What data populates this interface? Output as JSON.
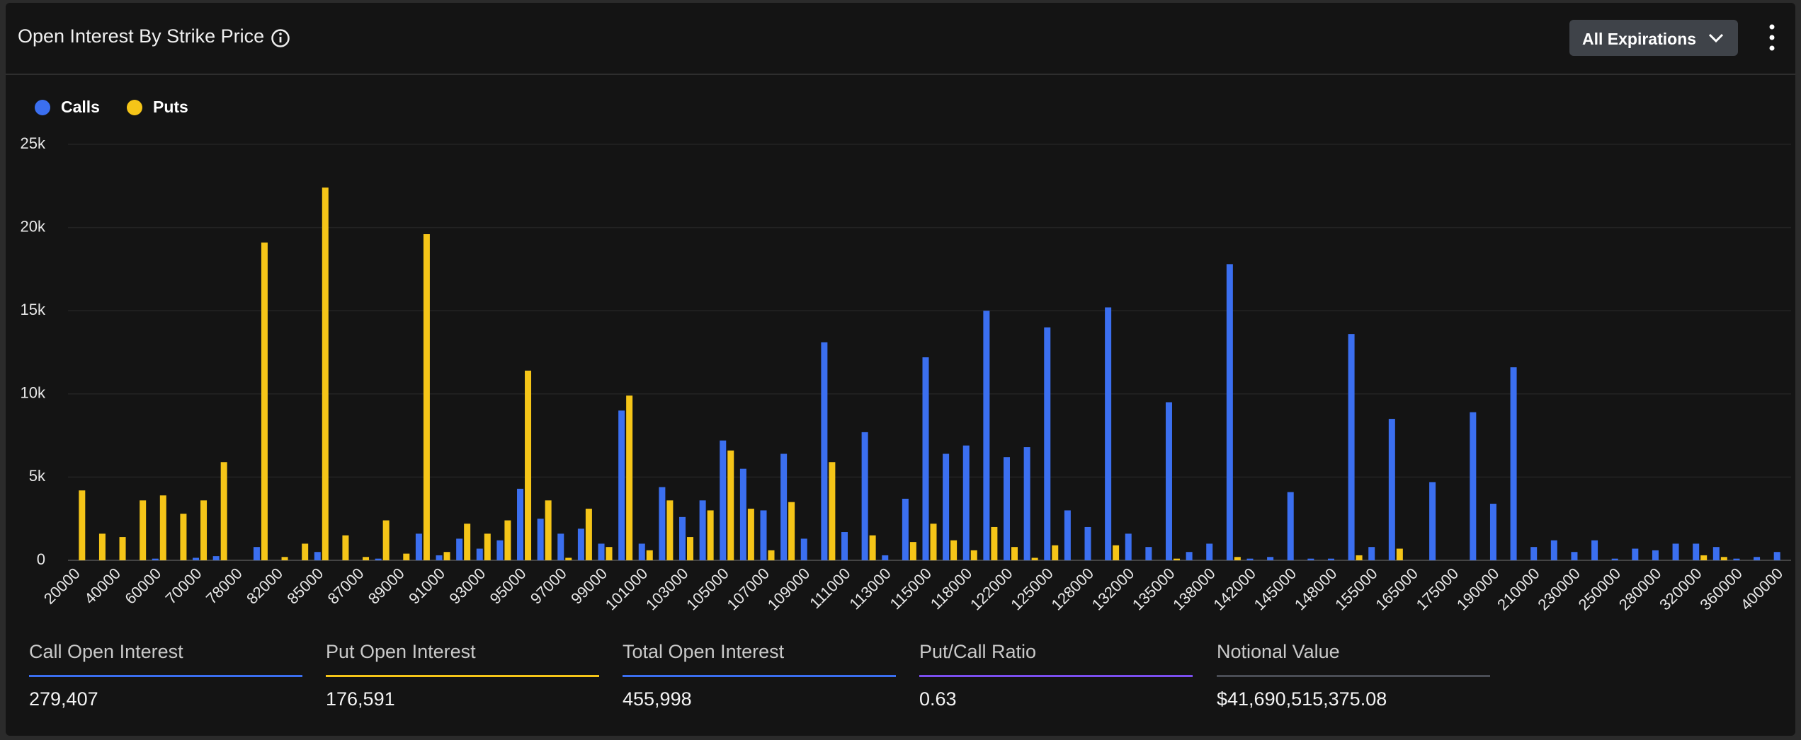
{
  "header": {
    "title": "Open Interest By Strike Price",
    "dropdown": "All Expirations"
  },
  "chart_data": {
    "type": "bar",
    "categories": [
      "20000",
      null,
      "40000",
      null,
      "60000",
      null,
      "70000",
      null,
      "78000",
      null,
      "82000",
      null,
      "85000",
      null,
      "87000",
      null,
      "89000",
      null,
      "91000",
      null,
      "93000",
      null,
      "95000",
      null,
      "97000",
      null,
      "99000",
      null,
      "101000",
      null,
      "103000",
      null,
      "105000",
      null,
      "107000",
      null,
      "109000",
      null,
      "111000",
      null,
      "113000",
      null,
      "115000",
      null,
      "118000",
      null,
      "122000",
      null,
      "125000",
      null,
      "128000",
      null,
      "132000",
      null,
      "135000",
      null,
      "138000",
      null,
      "142000",
      null,
      "145000",
      null,
      "148000",
      null,
      "155000",
      null,
      "165000",
      null,
      "175000",
      null,
      "190000",
      null,
      "210000",
      null,
      "230000",
      null,
      "250000",
      null,
      "280000",
      null,
      "320000",
      null,
      "360000",
      null,
      "400000"
    ],
    "series": [
      {
        "name": "Calls",
        "color": "#3b6ff0",
        "values": [
          0,
          0,
          0,
          0,
          100,
          0,
          150,
          250,
          0,
          800,
          0,
          0,
          500,
          0,
          0,
          100,
          0,
          1600,
          300,
          1300,
          700,
          1200,
          4300,
          2500,
          1600,
          1900,
          1000,
          9000,
          1000,
          4400,
          2600,
          3600,
          7200,
          5500,
          3000,
          6400,
          1300,
          13100,
          1700,
          7700,
          300,
          3700,
          12200,
          6400,
          6900,
          15000,
          6200,
          6800,
          14000,
          3000,
          2000,
          15200,
          1600,
          800,
          9500,
          500,
          1000,
          17800,
          100,
          200,
          4100,
          100,
          100,
          13600,
          800,
          8500,
          0,
          4700,
          0,
          8900,
          3400,
          11600,
          800,
          1200,
          500,
          1200,
          100,
          700,
          600,
          1000,
          1000,
          800,
          100,
          200,
          500
        ]
      },
      {
        "name": "Puts",
        "color": "#f5c518",
        "values": [
          4200,
          1600,
          1400,
          3600,
          3900,
          2800,
          3600,
          5900,
          0,
          19100,
          200,
          1000,
          22400,
          1500,
          200,
          2400,
          400,
          19600,
          500,
          2200,
          1600,
          2400,
          11400,
          3600,
          150,
          3100,
          800,
          9900,
          600,
          3600,
          1400,
          3000,
          6600,
          3100,
          600,
          3500,
          0,
          5900,
          0,
          1500,
          0,
          1100,
          2200,
          1200,
          600,
          2000,
          800,
          150,
          900,
          0,
          0,
          900,
          0,
          0,
          100,
          0,
          0,
          200,
          0,
          0,
          0,
          0,
          0,
          300,
          0,
          700,
          0,
          0,
          0,
          0,
          0,
          0,
          0,
          0,
          0,
          0,
          0,
          0,
          0,
          0,
          300,
          200,
          0,
          0,
          0
        ]
      }
    ],
    "ylim": [
      0,
      25000
    ],
    "yticks": [
      0,
      {
        "value": 5000,
        "label": "5k"
      },
      {
        "value": 10000,
        "label": "10k"
      },
      {
        "value": 15000,
        "label": "15k"
      },
      {
        "value": 20000,
        "label": "20k"
      },
      {
        "value": 25000,
        "label": "25k"
      }
    ],
    "grid": true,
    "legend": "top-left"
  },
  "stats": [
    {
      "label": "Call Open Interest",
      "value": "279,407",
      "color": "#3b6ff0"
    },
    {
      "label": "Put Open Interest",
      "value": "176,591",
      "color": "#f5c518"
    },
    {
      "label": "Total Open Interest",
      "value": "455,998",
      "color": "#3b6ff0"
    },
    {
      "label": "Put/Call Ratio",
      "value": "0.63",
      "color": "#7b4ff0"
    },
    {
      "label": "Notional Value",
      "value": "$41,690,515,375.08",
      "color": "#4a4d55"
    }
  ]
}
